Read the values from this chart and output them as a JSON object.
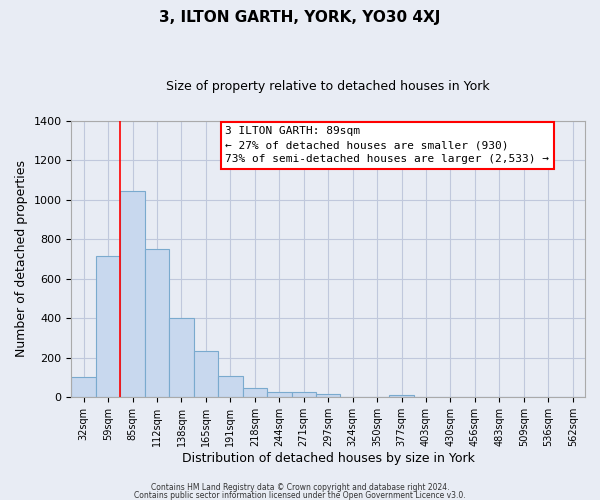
{
  "title": "3, ILTON GARTH, YORK, YO30 4XJ",
  "subtitle": "Size of property relative to detached houses in York",
  "xlabel": "Distribution of detached houses by size in York",
  "ylabel": "Number of detached properties",
  "bar_labels": [
    "32sqm",
    "59sqm",
    "85sqm",
    "112sqm",
    "138sqm",
    "165sqm",
    "191sqm",
    "218sqm",
    "244sqm",
    "271sqm",
    "297sqm",
    "324sqm",
    "350sqm",
    "377sqm",
    "403sqm",
    "430sqm",
    "456sqm",
    "483sqm",
    "509sqm",
    "536sqm",
    "562sqm"
  ],
  "bar_values": [
    105,
    715,
    1045,
    750,
    400,
    235,
    110,
    45,
    28,
    28,
    18,
    0,
    0,
    10,
    0,
    0,
    0,
    0,
    0,
    0,
    0
  ],
  "bar_color": "#c8d8ee",
  "bar_edge_color": "#7aaace",
  "vline_color": "red",
  "ylim": [
    0,
    1400
  ],
  "yticks": [
    0,
    200,
    400,
    600,
    800,
    1000,
    1200,
    1400
  ],
  "annotation_title": "3 ILTON GARTH: 89sqm",
  "annotation_line1": "← 27% of detached houses are smaller (930)",
  "annotation_line2": "73% of semi-detached houses are larger (2,533) →",
  "annotation_box_color": "white",
  "annotation_box_edge": "red",
  "footer_line1": "Contains HM Land Registry data © Crown copyright and database right 2024.",
  "footer_line2": "Contains public sector information licensed under the Open Government Licence v3.0.",
  "bg_color": "#e8ecf4",
  "plot_bg_color": "#e8ecf4",
  "grid_color": "#c0c8dc"
}
